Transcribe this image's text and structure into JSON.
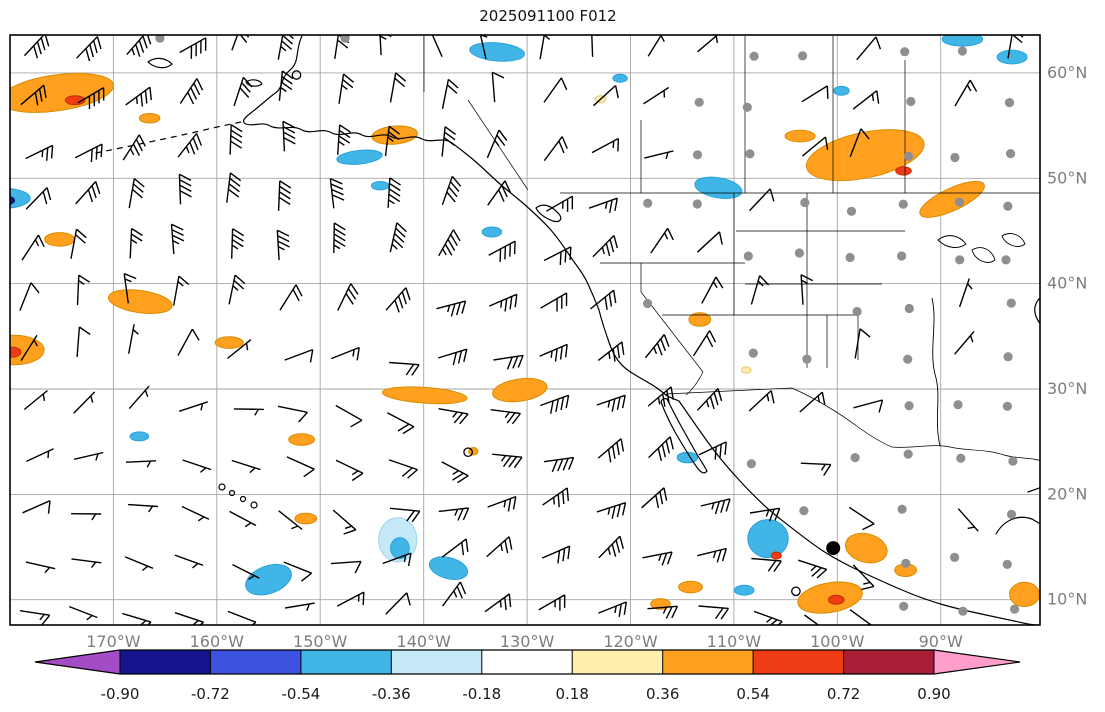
{
  "title": "2025091100 F012",
  "axes": {
    "lon_ticks": [
      "170°W",
      "160°W",
      "150°W",
      "140°W",
      "130°W",
      "120°W",
      "110°W",
      "100°W",
      "90°W"
    ],
    "lat_ticks": [
      "10°N",
      "20°N",
      "30°N",
      "40°N",
      "50°N",
      "60°N"
    ]
  },
  "colors": {
    "grid": "#a6a6a6",
    "tick_label": "#7d7d7d",
    "colorbar_label": "#1a1a1a",
    "coast": "#000000",
    "barb": "#000000",
    "station_dot": "#8f8f8f",
    "levels": {
      "navy": "#16148C",
      "blue": "#41B6E6",
      "paleblue": "#C6E9F8",
      "yellow": "#FFEFAE",
      "orange": "#FFA01E",
      "red": "#F03C14"
    },
    "outlines": {
      "navy": "#10106E",
      "blue": "#28A0DC",
      "paleblue": "#9CD4F0",
      "yellow": "#E0C860",
      "orange": "#D98C00",
      "red": "#C03000"
    }
  },
  "colorbar": {
    "tick_labels": [
      "-0.90",
      "-0.72",
      "-0.54",
      "-0.36",
      "-0.18",
      "0.18",
      "0.36",
      "0.54",
      "0.72",
      "0.90"
    ],
    "segment_colors": [
      "#A24DC6",
      "#16148C",
      "#3D52E0",
      "#41B6E6",
      "#C6E9F8",
      "#FFFFFF",
      "#FFEFAE",
      "#FFA01E",
      "#F03C14",
      "#A81E35",
      "#FF9DCB"
    ]
  },
  "chart_data": {
    "type": "heatmap",
    "title": "2025091100 F012",
    "xlabel": "",
    "ylabel": "",
    "x_ticks_lon_w": [
      170,
      160,
      150,
      140,
      130,
      120,
      110,
      100,
      90
    ],
    "y_ticks_lat_n": [
      10,
      20,
      30,
      40,
      50,
      60
    ],
    "x_range_lon_w": [
      180.0,
      80.4
    ],
    "y_range_lat_n": [
      7.6,
      63.6
    ],
    "colorbar_levels": [
      -0.9,
      -0.72,
      -0.54,
      -0.36,
      -0.18,
      0.18,
      0.36,
      0.54,
      0.72,
      0.9
    ],
    "legend_position": "bottom",
    "grid": true,
    "wind_field": {
      "description": "Wind barbs on regular lat-lon grid (half barb = 5 kt, full barb = 10 kt, pennant = 50 kt); gray dots are stations over land; individual values not legible at this scale",
      "seed": 20250911
    },
    "anomaly_patches": [
      {
        "lon": 175.5,
        "lat": 58.1,
        "w": 11.1,
        "h": 3.4,
        "level": "orange",
        "rot": -8
      },
      {
        "lon": 173.7,
        "lat": 57.4,
        "w": 1.9,
        "h": 0.85,
        "level": "red",
        "rot": 0
      },
      {
        "lon": 166.5,
        "lat": 55.7,
        "w": 2.0,
        "h": 0.9,
        "level": "orange",
        "rot": 0
      },
      {
        "lon": 142.8,
        "lat": 54.1,
        "w": 4.4,
        "h": 1.7,
        "level": "orange",
        "rot": -5
      },
      {
        "lon": 175.2,
        "lat": 44.2,
        "w": 2.9,
        "h": 1.3,
        "level": "orange",
        "rot": 0
      },
      {
        "lon": 167.4,
        "lat": 38.3,
        "w": 6.2,
        "h": 2.1,
        "level": "orange",
        "rot": 8
      },
      {
        "lon": 179.6,
        "lat": 33.7,
        "w": 5.8,
        "h": 2.8,
        "level": "orange",
        "rot": 0
      },
      {
        "lon": 179.8,
        "lat": 33.5,
        "w": 1.7,
        "h": 0.95,
        "level": "red",
        "rot": 0
      },
      {
        "lon": 158.8,
        "lat": 34.4,
        "w": 2.7,
        "h": 1.1,
        "level": "orange",
        "rot": 0
      },
      {
        "lon": 139.9,
        "lat": 29.4,
        "w": 8.2,
        "h": 1.5,
        "level": "orange",
        "rot": 4
      },
      {
        "lon": 130.7,
        "lat": 29.9,
        "w": 5.3,
        "h": 2.1,
        "level": "orange",
        "rot": -8
      },
      {
        "lon": 151.8,
        "lat": 25.2,
        "w": 2.5,
        "h": 1.1,
        "level": "orange",
        "rot": 0
      },
      {
        "lon": 113.3,
        "lat": 36.6,
        "w": 2.1,
        "h": 1.3,
        "level": "orange",
        "rot": 0
      },
      {
        "lon": 97.3,
        "lat": 52.2,
        "w": 11.6,
        "h": 4.3,
        "level": "orange",
        "rot": -12
      },
      {
        "lon": 93.6,
        "lat": 50.7,
        "w": 1.5,
        "h": 0.8,
        "level": "red",
        "rot": 0
      },
      {
        "lon": 88.9,
        "lat": 48.0,
        "w": 6.8,
        "h": 2.1,
        "level": "orange",
        "rot": -25
      },
      {
        "lon": 103.6,
        "lat": 54.0,
        "w": 2.9,
        "h": 1.1,
        "level": "orange",
        "rot": 0
      },
      {
        "lon": 100.7,
        "lat": 10.2,
        "w": 6.3,
        "h": 2.8,
        "level": "orange",
        "rot": -10
      },
      {
        "lon": 100.1,
        "lat": 10.0,
        "w": 1.5,
        "h": 0.85,
        "level": "red",
        "rot": 0
      },
      {
        "lon": 97.2,
        "lat": 14.9,
        "w": 4.1,
        "h": 2.7,
        "level": "orange",
        "rot": 15
      },
      {
        "lon": 93.4,
        "lat": 12.8,
        "w": 2.1,
        "h": 1.2,
        "level": "orange",
        "rot": 0
      },
      {
        "lon": 81.9,
        "lat": 10.5,
        "w": 2.9,
        "h": 2.3,
        "level": "orange",
        "rot": 0
      },
      {
        "lon": 114.2,
        "lat": 11.2,
        "w": 2.3,
        "h": 1.1,
        "level": "orange",
        "rot": 0
      },
      {
        "lon": 117.1,
        "lat": 9.6,
        "w": 1.9,
        "h": 1.0,
        "level": "orange",
        "rot": 0
      },
      {
        "lon": 151.4,
        "lat": 17.7,
        "w": 2.1,
        "h": 1.0,
        "level": "orange",
        "rot": 0
      },
      {
        "lon": 135.2,
        "lat": 24.1,
        "w": 0.9,
        "h": 0.7,
        "level": "orange",
        "rot": 0
      },
      {
        "lon": 132.9,
        "lat": 62.0,
        "w": 5.3,
        "h": 1.7,
        "level": "blue",
        "rot": 5
      },
      {
        "lon": 146.2,
        "lat": 52.0,
        "w": 4.4,
        "h": 1.3,
        "level": "blue",
        "rot": -6
      },
      {
        "lon": 144.2,
        "lat": 49.3,
        "w": 1.7,
        "h": 0.8,
        "level": "blue",
        "rot": 0
      },
      {
        "lon": 133.4,
        "lat": 44.9,
        "w": 1.9,
        "h": 0.95,
        "level": "blue",
        "rot": 0
      },
      {
        "lon": 111.5,
        "lat": 49.1,
        "w": 4.6,
        "h": 1.9,
        "level": "blue",
        "rot": 10
      },
      {
        "lon": 87.9,
        "lat": 63.2,
        "w": 3.9,
        "h": 1.3,
        "level": "blue",
        "rot": 0
      },
      {
        "lon": 83.1,
        "lat": 61.5,
        "w": 2.9,
        "h": 1.3,
        "level": "blue",
        "rot": 0
      },
      {
        "lon": 155.0,
        "lat": 11.9,
        "w": 4.6,
        "h": 2.6,
        "level": "blue",
        "rot": -20
      },
      {
        "lon": 142.5,
        "lat": 15.7,
        "w": 3.7,
        "h": 4.2,
        "level": "paleblue",
        "rot": 0
      },
      {
        "lon": 142.3,
        "lat": 14.9,
        "w": 1.8,
        "h": 2.0,
        "level": "blue",
        "rot": 0
      },
      {
        "lon": 137.6,
        "lat": 13.0,
        "w": 3.8,
        "h": 2.0,
        "level": "blue",
        "rot": 15
      },
      {
        "lon": 106.7,
        "lat": 15.8,
        "w": 3.9,
        "h": 3.6,
        "level": "blue",
        "rot": 0
      },
      {
        "lon": 105.9,
        "lat": 14.2,
        "w": 0.97,
        "h": 0.66,
        "level": "red",
        "rot": 0
      },
      {
        "lon": 109.0,
        "lat": 10.9,
        "w": 1.9,
        "h": 0.95,
        "level": "blue",
        "rot": 0
      },
      {
        "lon": 114.5,
        "lat": 23.5,
        "w": 2.0,
        "h": 1.0,
        "level": "blue",
        "rot": 0
      },
      {
        "lon": 167.5,
        "lat": 25.5,
        "w": 1.8,
        "h": 0.85,
        "level": "blue",
        "rot": 0
      },
      {
        "lon": 99.6,
        "lat": 58.3,
        "w": 1.5,
        "h": 0.85,
        "level": "blue",
        "rot": 0
      },
      {
        "lon": 121.0,
        "lat": 59.5,
        "w": 1.4,
        "h": 0.76,
        "level": "blue",
        "rot": 0
      },
      {
        "lon": 180.7,
        "lat": 48.1,
        "w": 5.3,
        "h": 1.9,
        "level": "blue",
        "rot": 0
      },
      {
        "lon": 180.5,
        "lat": 47.9,
        "w": 1.9,
        "h": 0.85,
        "level": "navy",
        "rot": 0
      },
      {
        "lon": 122.9,
        "lat": 57.5,
        "w": 1.0,
        "h": 0.66,
        "level": "yellow",
        "rot": 0
      },
      {
        "lon": 108.8,
        "lat": 31.8,
        "w": 0.9,
        "h": 0.6,
        "level": "yellow",
        "rot": 0
      }
    ],
    "symbols": [
      {
        "type": "calm",
        "lon": 152.3,
        "lat": 59.8
      },
      {
        "type": "calm",
        "lon": 135.7,
        "lat": 24.0
      },
      {
        "type": "calm",
        "lon": 104.0,
        "lat": 10.8
      },
      {
        "type": "storm",
        "lon": 100.4,
        "lat": 14.9
      }
    ],
    "extra_station_dots": [
      {
        "lon": 165.5,
        "lat": 63.3
      },
      {
        "lon": 147.6,
        "lat": 63.3
      }
    ]
  }
}
